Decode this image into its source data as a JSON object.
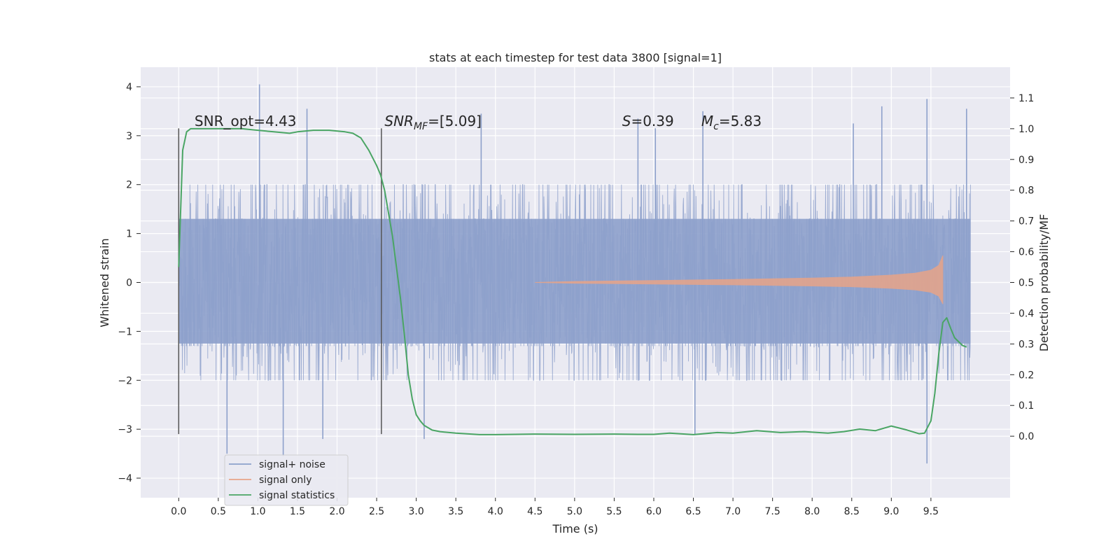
{
  "chart_data": {
    "type": "line",
    "title": "stats at each timestep for test data 3800 [signal=1]",
    "xlabel": "Time (s)",
    "ylabel_left": "Whitened strain",
    "ylabel_right": "Detection probability/MF",
    "xlim": [
      -0.48,
      10.5
    ],
    "ylim_left": [
      -4.4,
      4.4
    ],
    "ylim_right": [
      -0.2,
      1.2
    ],
    "xticks": [
      "0.0",
      "0.5",
      "1.0",
      "1.5",
      "2.0",
      "2.5",
      "3.0",
      "3.5",
      "4.0",
      "4.5",
      "5.0",
      "5.5",
      "6.0",
      "6.5",
      "7.0",
      "7.5",
      "8.0",
      "8.5",
      "9.0",
      "9.5"
    ],
    "yticks_left": [
      "4",
      "3",
      "2",
      "1",
      "0",
      "−1",
      "−2",
      "−3",
      "−4"
    ],
    "yticks_right": [
      "1.1",
      "1.0",
      "0.9",
      "0.8",
      "0.7",
      "0.6",
      "0.5",
      "0.4",
      "0.3",
      "0.2",
      "0.1",
      "0.0"
    ],
    "grid": true,
    "annotations": [
      {
        "text": "SNR_opt=4.43",
        "x": 0.2,
        "y": 3.2
      },
      {
        "text_main": "SNR",
        "text_sub": "MF",
        "text_rest": "=[5.09]",
        "x": 2.6,
        "y": 3.2
      },
      {
        "text_main": "S",
        "text_rest": "=0.39",
        "x": 5.6,
        "y": 3.2
      },
      {
        "text_main": "M",
        "text_sub": "c",
        "text_rest": "=5.83",
        "x": 6.6,
        "y": 3.2
      }
    ],
    "vertical_markers": [
      {
        "x": 0.0,
        "y_range": [
          -3.1,
          3.15
        ]
      },
      {
        "x": 2.56,
        "y_range": [
          -3.1,
          3.15
        ]
      }
    ],
    "series": [
      {
        "name": "signal+ noise",
        "color": "#8da0cb",
        "axis": "left",
        "style": "noise band",
        "x_range": [
          0.0,
          10.0
        ],
        "core_band": [
          -1.25,
          1.3
        ],
        "typical_range": [
          -2.0,
          2.0
        ],
        "peaks": [
          {
            "x": 0.61,
            "y": -3.5
          },
          {
            "x": 1.02,
            "y": 4.05
          },
          {
            "x": 1.32,
            "y": -3.55
          },
          {
            "x": 1.62,
            "y": 3.55
          },
          {
            "x": 1.82,
            "y": -3.2
          },
          {
            "x": 3.82,
            "y": 3.45
          },
          {
            "x": 3.1,
            "y": -3.2
          },
          {
            "x": 5.8,
            "y": 3.35
          },
          {
            "x": 6.02,
            "y": 3.15
          },
          {
            "x": 6.52,
            "y": -3.1
          },
          {
            "x": 6.62,
            "y": 3.5
          },
          {
            "x": 8.88,
            "y": 3.6
          },
          {
            "x": 9.45,
            "y": 3.75
          },
          {
            "x": 9.45,
            "y": -3.7
          },
          {
            "x": 9.95,
            "y": 3.55
          },
          {
            "x": 8.52,
            "y": 3.25
          }
        ]
      },
      {
        "name": "signal only",
        "color": "#e8a488",
        "axis": "left",
        "style": "chirp",
        "envelope_x": [
          4.5,
          5.0,
          6.0,
          7.0,
          8.0,
          8.5,
          9.0,
          9.3,
          9.5,
          9.6,
          9.65
        ],
        "envelope_amp": [
          0.0,
          0.02,
          0.04,
          0.06,
          0.09,
          0.11,
          0.15,
          0.19,
          0.25,
          0.35,
          0.55
        ]
      },
      {
        "name": "signal statistics",
        "color": "#4aa564",
        "axis": "right",
        "style": "line",
        "x": [
          0.0,
          0.05,
          0.1,
          0.15,
          0.25,
          0.5,
          0.8,
          1.0,
          1.2,
          1.4,
          1.5,
          1.7,
          1.9,
          2.1,
          2.2,
          2.3,
          2.4,
          2.5,
          2.55,
          2.6,
          2.7,
          2.8,
          2.85,
          2.9,
          2.95,
          3.0,
          3.05,
          3.1,
          3.2,
          3.3,
          3.5,
          3.8,
          4.0,
          4.5,
          5.0,
          5.5,
          5.8,
          6.0,
          6.2,
          6.5,
          6.8,
          7.0,
          7.3,
          7.6,
          7.9,
          8.2,
          8.4,
          8.6,
          8.8,
          9.0,
          9.2,
          9.35,
          9.42,
          9.5,
          9.55,
          9.6,
          9.65,
          9.7,
          9.75,
          9.8,
          9.9,
          9.95
        ],
        "y": [
          0.55,
          0.93,
          0.99,
          1.0,
          1.0,
          1.0,
          1.0,
          0.995,
          0.99,
          0.985,
          0.99,
          0.995,
          0.995,
          0.99,
          0.985,
          0.97,
          0.93,
          0.88,
          0.85,
          0.8,
          0.65,
          0.45,
          0.33,
          0.2,
          0.12,
          0.07,
          0.05,
          0.035,
          0.02,
          0.015,
          0.01,
          0.005,
          0.005,
          0.007,
          0.006,
          0.007,
          0.006,
          0.006,
          0.01,
          0.005,
          0.012,
          0.01,
          0.018,
          0.012,
          0.015,
          0.01,
          0.015,
          0.023,
          0.018,
          0.033,
          0.02,
          0.008,
          0.01,
          0.05,
          0.14,
          0.27,
          0.37,
          0.385,
          0.35,
          0.32,
          0.295,
          0.29
        ]
      }
    ],
    "legend": {
      "placement": "lower-left",
      "items": [
        "signal+ noise",
        "signal only",
        "signal statistics"
      ]
    }
  }
}
